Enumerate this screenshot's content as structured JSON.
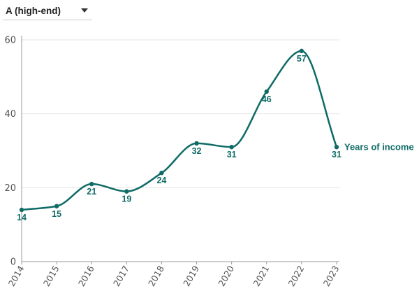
{
  "selector": {
    "selected": "A (high-end)",
    "icon": "caret-down-icon"
  },
  "colors": {
    "series": "#0f6b66",
    "grid": "#e6e6e6",
    "axis": "#999999",
    "text": "#555555"
  },
  "chart_data": {
    "type": "line",
    "title": "",
    "xlabel": "",
    "ylabel": "",
    "categories": [
      "2014",
      "2015",
      "2016",
      "2017",
      "2018",
      "2019",
      "2020",
      "2021",
      "2022",
      "2023"
    ],
    "series": [
      {
        "name": "Years of income",
        "values": [
          14,
          15,
          21,
          19,
          24,
          32,
          31,
          46,
          57,
          31
        ]
      }
    ],
    "ylim": [
      0,
      60
    ],
    "yticks": [
      "0",
      "20",
      "40",
      "60"
    ],
    "grid": true,
    "data_labels": true,
    "line_style": "smooth",
    "series_label_position": "end-of-line"
  }
}
